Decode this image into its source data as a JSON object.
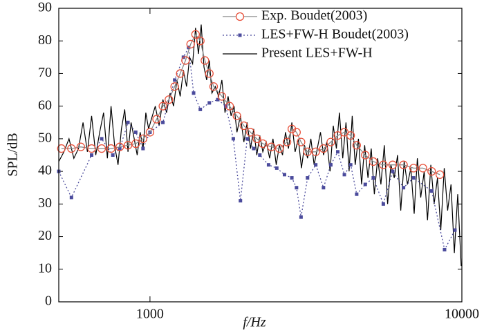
{
  "chart_data": {
    "type": "line",
    "xlabel": "f/Hz",
    "ylabel": "SPL/dB",
    "xscale": "log",
    "xlim": [
      510,
      10000
    ],
    "xticks": [
      1000,
      10000
    ],
    "ylim": [
      0,
      90
    ],
    "yticks": [
      0,
      10,
      20,
      30,
      40,
      50,
      60,
      70,
      80,
      90
    ],
    "legend": "upper right",
    "series": [
      {
        "name": "Exp. Boudet(2003)",
        "color": "#e8503a",
        "line_color": "#888888",
        "marker": "circle",
        "dash": "solid",
        "x": [
          520,
          560,
          600,
          650,
          700,
          750,
          800,
          850,
          900,
          950,
          1000,
          1050,
          1100,
          1150,
          1200,
          1250,
          1300,
          1350,
          1400,
          1450,
          1500,
          1550,
          1600,
          1700,
          1800,
          1900,
          2000,
          2100,
          2200,
          2300,
          2450,
          2600,
          2750,
          2850,
          2950,
          3050,
          3200,
          3400,
          3600,
          3800,
          4000,
          4200,
          4400,
          4600,
          4900,
          5200,
          5600,
          6000,
          6500,
          7000,
          7500,
          8000,
          8500
        ],
        "values": [
          47,
          47,
          47.5,
          47,
          47,
          47,
          47.5,
          48,
          48.5,
          50,
          52,
          56,
          60,
          62,
          66,
          70,
          74,
          79,
          82,
          80,
          74,
          70,
          66,
          63,
          60,
          57,
          54,
          52,
          50,
          48.5,
          47.5,
          47,
          49,
          53,
          52,
          49,
          46,
          46,
          47,
          49,
          51,
          52,
          51,
          48,
          45,
          43,
          42,
          42,
          42,
          41,
          41,
          40,
          39
        ]
      },
      {
        "name": "LES+FW-H Boudet(2003)",
        "color": "#4b4b9c",
        "line_color": "#4b4b9c",
        "marker": "square",
        "dash": "dotted",
        "x": [
          510,
          560,
          650,
          700,
          760,
          800,
          850,
          900,
          950,
          1000,
          1100,
          1200,
          1280,
          1330,
          1380,
          1450,
          1550,
          1650,
          1750,
          1850,
          1950,
          2050,
          2150,
          2250,
          2400,
          2550,
          2700,
          2850,
          2950,
          3050,
          3200,
          3400,
          3600,
          3800,
          4000,
          4200,
          4400,
          4600,
          4900,
          5200,
          5600,
          6000,
          6500,
          7000,
          8000,
          8800,
          9500
        ],
        "values": [
          40,
          32,
          45,
          50,
          45,
          47,
          55,
          52,
          47,
          52,
          55,
          68,
          75,
          78,
          64,
          59,
          61,
          62,
          60,
          50,
          31,
          50,
          47,
          45,
          42,
          41,
          39,
          38,
          35,
          26,
          38,
          42,
          35,
          42,
          46,
          39,
          42,
          33,
          36,
          38,
          30,
          40,
          35,
          38,
          34,
          16,
          22
        ]
      },
      {
        "name": "Present LES+FW-H",
        "color": "#000000",
        "line_color": "#000000",
        "marker": "none",
        "dash": "solid",
        "x": [
          510,
          530,
          550,
          570,
          590,
          610,
          630,
          650,
          670,
          690,
          710,
          730,
          750,
          770,
          790,
          810,
          830,
          850,
          870,
          890,
          910,
          930,
          950,
          970,
          990,
          1010,
          1040,
          1070,
          1100,
          1130,
          1160,
          1190,
          1220,
          1250,
          1280,
          1310,
          1340,
          1370,
          1400,
          1430,
          1460,
          1490,
          1520,
          1550,
          1580,
          1620,
          1660,
          1700,
          1740,
          1780,
          1820,
          1860,
          1900,
          1950,
          2000,
          2050,
          2100,
          2150,
          2200,
          2250,
          2300,
          2360,
          2420,
          2480,
          2540,
          2600,
          2660,
          2720,
          2780,
          2850,
          2920,
          2990,
          3060,
          3130,
          3200,
          3280,
          3360,
          3440,
          3520,
          3600,
          3690,
          3780,
          3870,
          3960,
          4050,
          4150,
          4250,
          4350,
          4450,
          4550,
          4660,
          4770,
          4880,
          5000,
          5120,
          5240,
          5370,
          5500,
          5640,
          5780,
          5920,
          6070,
          6220,
          6370,
          6530,
          6690,
          6860,
          7030,
          7200,
          7380,
          7570,
          7760,
          7950,
          8150,
          8350,
          8560,
          8780,
          9000,
          9230,
          9460,
          9700,
          9950
        ],
        "values": [
          43,
          46,
          50,
          44,
          47,
          55,
          46,
          57,
          45,
          52,
          58,
          44,
          60,
          48,
          42,
          53,
          59,
          46,
          55,
          50,
          45,
          52,
          47,
          58,
          53,
          56,
          60,
          54,
          62,
          58,
          64,
          60,
          68,
          63,
          71,
          66,
          75,
          73,
          84,
          76,
          85,
          72,
          68,
          74,
          64,
          66,
          63,
          68,
          58,
          63,
          57,
          60,
          52,
          57,
          49,
          55,
          47,
          53,
          45,
          51,
          46,
          49,
          44,
          50,
          42,
          48,
          45,
          52,
          47,
          55,
          46,
          50,
          41,
          48,
          44,
          50,
          42,
          47,
          52,
          45,
          49,
          40,
          54,
          47,
          58,
          44,
          55,
          40,
          57,
          42,
          50,
          36,
          48,
          38,
          47,
          33,
          44,
          36,
          48,
          30,
          42,
          38,
          45,
          28,
          43,
          36,
          41,
          27,
          44,
          32,
          40,
          25,
          42,
          30,
          38,
          22,
          41,
          28,
          36,
          15,
          33,
          11
        ]
      }
    ]
  }
}
